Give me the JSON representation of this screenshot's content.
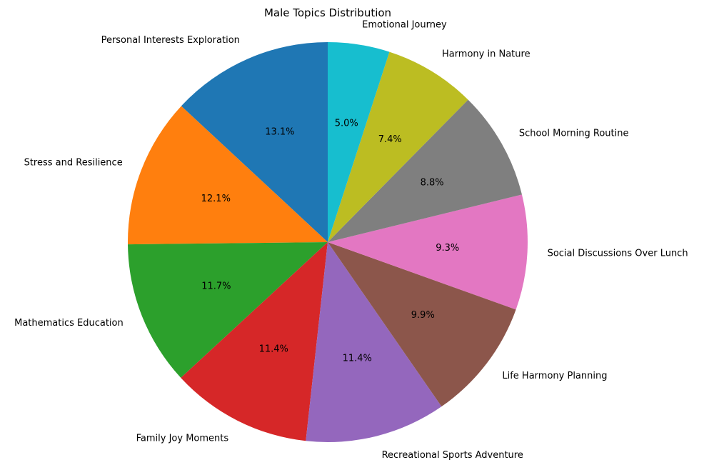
{
  "chart_data": {
    "type": "pie",
    "title": "Male Topics Distribution",
    "start_angle_deg": 90,
    "direction": "counterclockwise",
    "slices": [
      {
        "label": "Personal Interests Exploration",
        "value": 13.1,
        "pct_label": "13.1%",
        "color": "#1f77b4"
      },
      {
        "label": "Stress and Resilience",
        "value": 12.1,
        "pct_label": "12.1%",
        "color": "#ff7f0e"
      },
      {
        "label": "Mathematics Education",
        "value": 11.7,
        "pct_label": "11.7%",
        "color": "#2ca02c"
      },
      {
        "label": "Family Joy Moments",
        "value": 11.4,
        "pct_label": "11.4%",
        "color": "#d62728"
      },
      {
        "label": "Recreational Sports Adventure",
        "value": 11.4,
        "pct_label": "11.4%",
        "color": "#9467bd"
      },
      {
        "label": "Life Harmony Planning",
        "value": 9.9,
        "pct_label": "9.9%",
        "color": "#8c564b"
      },
      {
        "label": "Social Discussions Over Lunch",
        "value": 9.3,
        "pct_label": "9.3%",
        "color": "#e377c2"
      },
      {
        "label": "School Morning Routine",
        "value": 8.8,
        "pct_label": "8.8%",
        "color": "#7f7f7f"
      },
      {
        "label": "Harmony in Nature",
        "value": 7.4,
        "pct_label": "7.4%",
        "color": "#bcbd22"
      },
      {
        "label": "Emotional Journey",
        "value": 5.0,
        "pct_label": "5.0%",
        "color": "#17becf"
      }
    ]
  }
}
